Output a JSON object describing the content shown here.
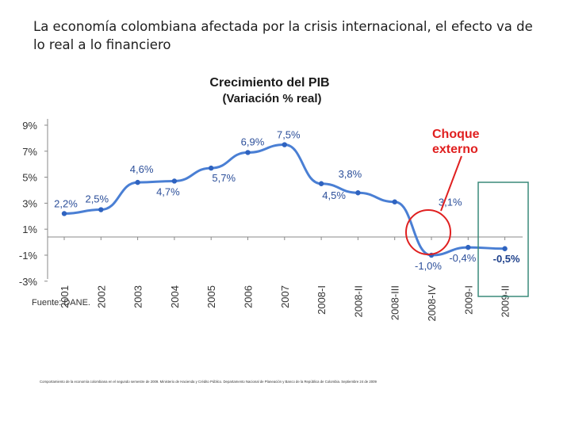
{
  "slide": {
    "title_line1": "La economía colombiana afectada por la crisis internacional,  el efecto va de",
    "title_line2": "lo real a lo financiero"
  },
  "chart_data": {
    "type": "line",
    "title": "Crecimiento del PIB",
    "subtitle": "(Variación % real)",
    "categories": [
      "2001",
      "2002",
      "2003",
      "2004",
      "2005",
      "2006",
      "2007",
      "2008-I",
      "2008-II",
      "2008-III",
      "2008-IV",
      "2009-I",
      "2009-II"
    ],
    "x_tick_labels": [
      "2001",
      "2002",
      "2003",
      "2004",
      "2005",
      "2006",
      "2007",
      "2008-I",
      "2008-II",
      "2008-III",
      "2008-IV",
      "2009-I",
      "2009-II"
    ],
    "series": [
      {
        "name": "PIB",
        "color": "#4a7fd4",
        "values": [
          2.2,
          2.5,
          4.6,
          4.7,
          5.7,
          6.9,
          7.5,
          4.5,
          3.8,
          3.1,
          -1.0,
          -0.4,
          -0.5
        ],
        "data_labels": [
          "2,2%",
          "2,5%",
          "4,6%",
          "4,7%",
          "5,7%",
          "6,9%",
          "7,5%",
          "4,5%",
          "3,8%",
          "3,1%",
          "-1,0%",
          "-0,4%",
          "-0,5%"
        ]
      }
    ],
    "y_tick_labels": [
      "9%",
      "7%",
      "5%",
      "3%",
      "1%",
      "-1%",
      "-3%"
    ],
    "y_ticks": [
      9,
      7,
      5,
      3,
      1,
      -1,
      -3
    ],
    "ylim": [
      -3,
      9
    ],
    "grid": false,
    "source": "Fuente: DANE.",
    "annotation": {
      "text_line1": "Choque",
      "text_line2": "externo",
      "color": "#e02020"
    },
    "highlight_box_color": "#3a8a7a"
  },
  "footnote": "Comportamiento de la economía colombiana en el segundo semestre de 2009. Ministerio de Hacienda y Crédito Público. Departamento Nacional de Planeación y Banco de la República de Colombia. Septiembre 24 de 2009"
}
